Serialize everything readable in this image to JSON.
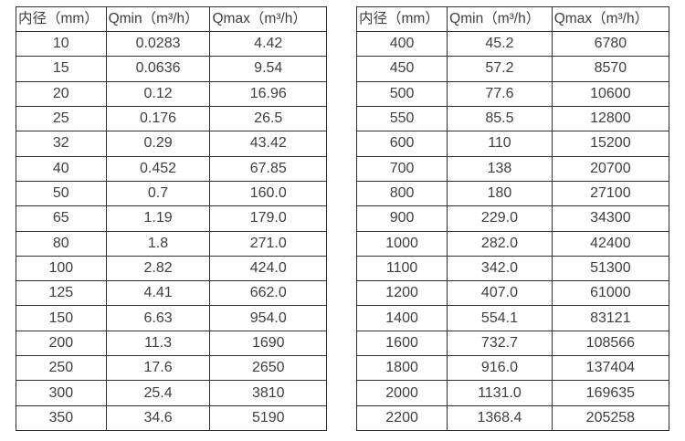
{
  "columns": [
    "内径（mm）",
    "Qmin（m³/h）",
    "Qmax（m³/h）"
  ],
  "left_table": {
    "rows": [
      [
        "10",
        "0.0283",
        "4.42"
      ],
      [
        "15",
        "0.0636",
        "9.54"
      ],
      [
        "20",
        "0.12",
        "16.96"
      ],
      [
        "25",
        "0.176",
        "26.5"
      ],
      [
        "32",
        "0.29",
        "43.42"
      ],
      [
        "40",
        "0.452",
        "67.85"
      ],
      [
        "50",
        "0.7",
        "160.0"
      ],
      [
        "65",
        "1.19",
        "179.0"
      ],
      [
        "80",
        "1.8",
        "271.0"
      ],
      [
        "100",
        "2.82",
        "424.0"
      ],
      [
        "125",
        "4.41",
        "662.0"
      ],
      [
        "150",
        "6.63",
        "954.0"
      ],
      [
        "200",
        "11.3",
        "1690"
      ],
      [
        "250",
        "17.6",
        "2650"
      ],
      [
        "300",
        "25.4",
        "3810"
      ],
      [
        "350",
        "34.6",
        "5190"
      ]
    ]
  },
  "right_table": {
    "rows": [
      [
        "400",
        "45.2",
        "6780"
      ],
      [
        "450",
        "57.2",
        "8570"
      ],
      [
        "500",
        "77.6",
        "10600"
      ],
      [
        "550",
        "85.5",
        "12800"
      ],
      [
        "600",
        "110",
        "15200"
      ],
      [
        "700",
        "138",
        "20700"
      ],
      [
        "800",
        "180",
        "27100"
      ],
      [
        "900",
        "229.0",
        "34300"
      ],
      [
        "1000",
        "282.0",
        "42400"
      ],
      [
        "1100",
        "342.0",
        "51300"
      ],
      [
        "1200",
        "407.0",
        "61000"
      ],
      [
        "1400",
        "554.1",
        "83121"
      ],
      [
        "1600",
        "732.7",
        "108566"
      ],
      [
        "1800",
        "916.0",
        "137404"
      ],
      [
        "2000",
        "1131.0",
        "169635"
      ],
      [
        "2200",
        "1368.4",
        "205258"
      ]
    ]
  },
  "colors": {
    "text": "#3f3f3f",
    "border": "#2f2f2f",
    "background": "#ffffff"
  }
}
